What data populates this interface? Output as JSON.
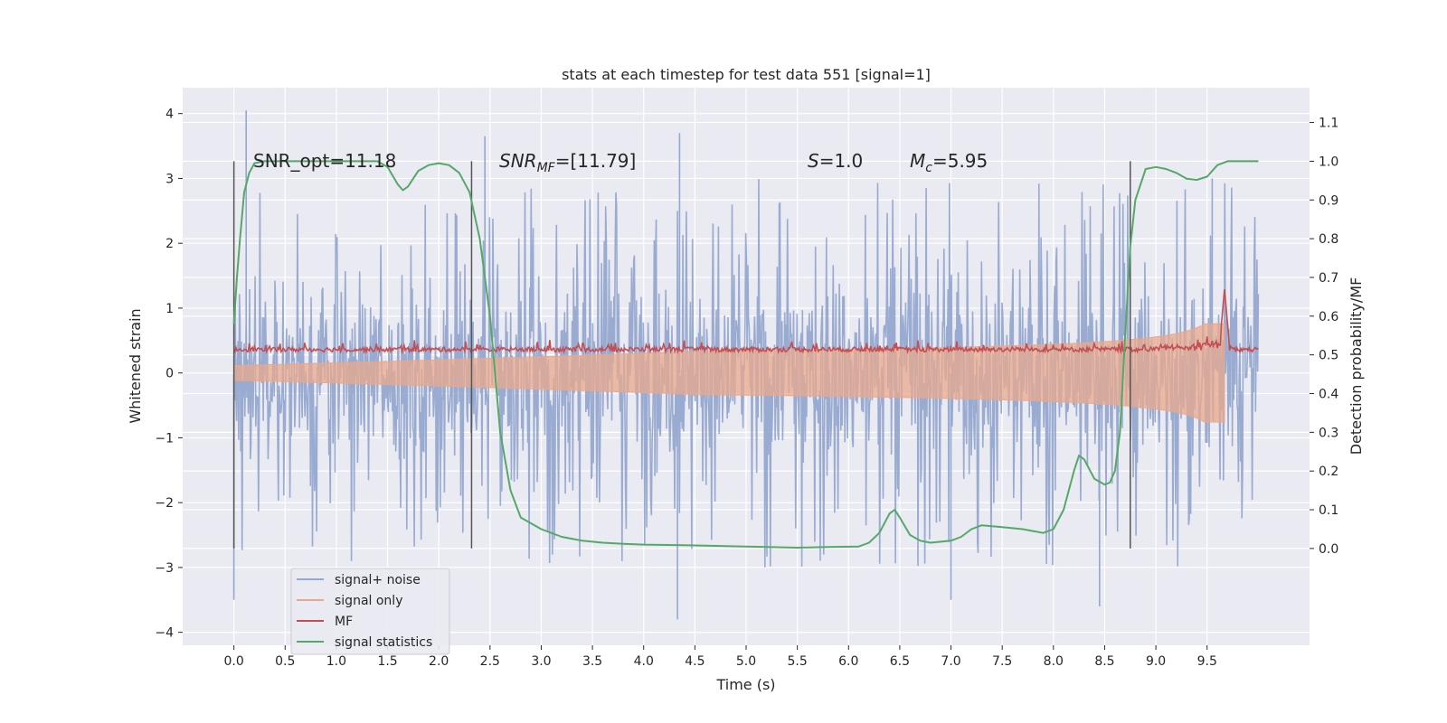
{
  "chart_data": {
    "type": "line",
    "title": "stats at each timestep for test data 551 [signal=1]",
    "xlabel": "Time (s)",
    "ylabel_left": "Whitened strain",
    "ylabel_right": "Detection probability/MF",
    "xlim": [
      -0.5,
      10.5
    ],
    "ylim_left": [
      -4.2,
      4.4
    ],
    "ylim_right": [
      -0.25,
      1.19
    ],
    "xticks": [
      "0.0",
      "0.5",
      "1.0",
      "1.5",
      "2.0",
      "2.5",
      "3.0",
      "3.5",
      "4.0",
      "4.5",
      "5.0",
      "5.5",
      "6.0",
      "6.5",
      "7.0",
      "7.5",
      "8.0",
      "8.5",
      "9.0",
      "9.5"
    ],
    "yticks_left": [
      "−4",
      "−3",
      "−2",
      "−1",
      "0",
      "1",
      "2",
      "3",
      "4"
    ],
    "yticks_right": [
      "0.0",
      "0.1",
      "0.2",
      "0.3",
      "0.4",
      "0.5",
      "0.6",
      "0.7",
      "0.8",
      "0.9",
      "1.0",
      "1.1"
    ],
    "grid": true,
    "legend_position": "lower-left",
    "annotations": {
      "snr_opt": "SNR_opt=11.18",
      "snr_mf_sym": "SNR",
      "snr_mf_sub": "MF",
      "snr_mf_rest": "=[11.79]",
      "s_sym": "S",
      "s_rest": "=1.0",
      "mc_sym": "M",
      "mc_sub": "c",
      "mc_rest": "=5.95"
    },
    "markers_x": [
      0.0,
      2.32,
      8.75
    ],
    "marker_range_right": [
      0.0,
      1.0
    ],
    "series": [
      {
        "name": "signal+ noise",
        "color": "#95a8cf",
        "style": "noise",
        "x_range": [
          0.0,
          10.0
        ],
        "envelope": 1.5,
        "extreme_peaks": [
          {
            "x": 0.12,
            "y": 4.05
          },
          {
            "x": 0.0,
            "y": -3.5
          },
          {
            "x": 2.45,
            "y": 3.65
          },
          {
            "x": 4.35,
            "y": 3.7
          },
          {
            "x": 4.33,
            "y": -3.8
          },
          {
            "x": 8.45,
            "y": -3.6
          },
          {
            "x": 7.0,
            "y": -3.5
          },
          {
            "x": 9.55,
            "y": 3.0
          }
        ]
      },
      {
        "name": "signal only",
        "color": "#e8a88c",
        "style": "chirp",
        "x_range": [
          0.0,
          9.67
        ],
        "peak_amplitude": 1.5
      },
      {
        "name": "MF",
        "color": "#c44e52",
        "style": "mf",
        "x_range": [
          0.0,
          10.0
        ],
        "baseline": 0.5,
        "spike": {
          "x": 9.67,
          "y": 0.67
        }
      },
      {
        "name": "signal statistics",
        "color": "#55a868",
        "style": "line",
        "x": [
          0.0,
          0.03,
          0.06,
          0.1,
          0.15,
          0.2,
          0.3,
          0.5,
          0.8,
          1.0,
          1.2,
          1.4,
          1.5,
          1.6,
          1.65,
          1.7,
          1.8,
          1.9,
          2.0,
          2.1,
          2.2,
          2.3,
          2.4,
          2.5,
          2.6,
          2.7,
          2.8,
          3.0,
          3.2,
          3.4,
          3.6,
          3.8,
          4.0,
          4.5,
          5.0,
          5.5,
          5.8,
          6.1,
          6.2,
          6.3,
          6.4,
          6.45,
          6.5,
          6.6,
          6.7,
          6.8,
          7.0,
          7.1,
          7.2,
          7.3,
          7.5,
          7.7,
          7.8,
          7.9,
          8.0,
          8.1,
          8.2,
          8.25,
          8.3,
          8.4,
          8.5,
          8.55,
          8.6,
          8.65,
          8.7,
          8.75,
          8.8,
          8.9,
          9.0,
          9.1,
          9.2,
          9.3,
          9.4,
          9.5,
          9.6,
          9.7,
          9.8,
          10.0
        ],
        "y": [
          0.58,
          0.7,
          0.8,
          0.92,
          0.97,
          0.995,
          1.0,
          1.0,
          1.0,
          1.0,
          1.0,
          1.0,
          0.985,
          0.94,
          0.925,
          0.935,
          0.975,
          0.99,
          0.995,
          0.99,
          0.97,
          0.92,
          0.8,
          0.6,
          0.3,
          0.15,
          0.08,
          0.05,
          0.03,
          0.02,
          0.015,
          0.012,
          0.01,
          0.008,
          0.005,
          0.002,
          0.004,
          0.005,
          0.015,
          0.04,
          0.09,
          0.1,
          0.08,
          0.035,
          0.02,
          0.015,
          0.02,
          0.03,
          0.05,
          0.06,
          0.055,
          0.05,
          0.045,
          0.04,
          0.05,
          0.1,
          0.2,
          0.24,
          0.23,
          0.18,
          0.165,
          0.17,
          0.2,
          0.3,
          0.55,
          0.78,
          0.9,
          0.98,
          0.985,
          0.98,
          0.97,
          0.955,
          0.952,
          0.96,
          0.99,
          1.0,
          1.0,
          1.0
        ]
      }
    ]
  }
}
